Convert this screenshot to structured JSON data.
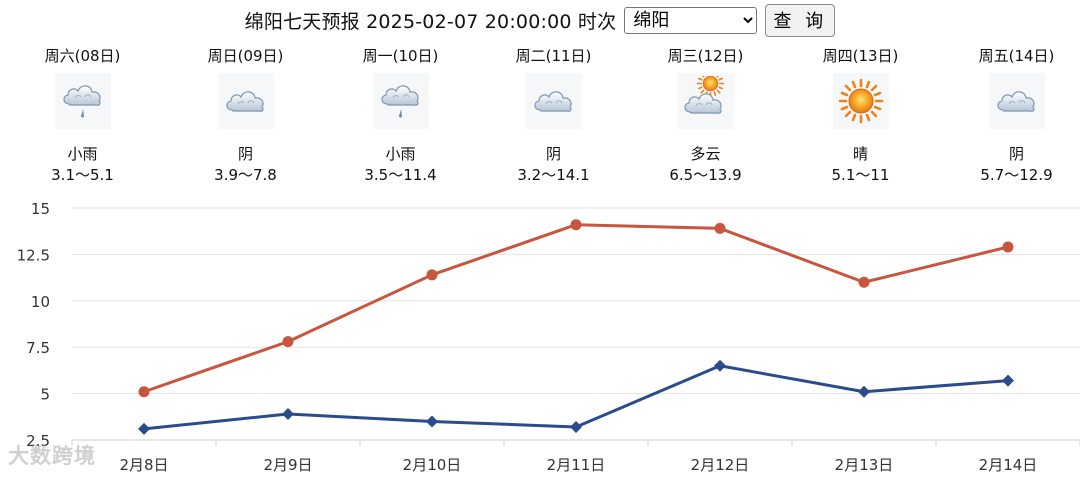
{
  "header": {
    "title": "绵阳七天预报 2025-02-07 20:00:00 时次",
    "selected_city": "绵阳",
    "query_label": "查 询"
  },
  "forecast": [
    {
      "day": "周六(08日)",
      "icon": "light-rain-icon",
      "condition": "小雨",
      "range": "3.1～5.1"
    },
    {
      "day": "周日(09日)",
      "icon": "overcast-icon",
      "condition": "阴",
      "range": "3.9～7.8"
    },
    {
      "day": "周一(10日)",
      "icon": "light-rain-icon",
      "condition": "小雨",
      "range": "3.5～11.4"
    },
    {
      "day": "周二(11日)",
      "icon": "overcast-icon",
      "condition": "阴",
      "range": "3.2～14.1"
    },
    {
      "day": "周三(12日)",
      "icon": "partly-cloudy-icon",
      "condition": "多云",
      "range": "6.5～13.9"
    },
    {
      "day": "周四(13日)",
      "icon": "sun-icon",
      "condition": "晴",
      "range": "5.1～11"
    },
    {
      "day": "周五(14日)",
      "icon": "overcast-icon",
      "condition": "阴",
      "range": "5.7～12.9"
    }
  ],
  "chart_data": {
    "type": "line",
    "categories": [
      "2月8日",
      "2月9日",
      "2月10日",
      "2月11日",
      "2月12日",
      "2月13日",
      "2月14日"
    ],
    "series": [
      {
        "values": [
          5.1,
          7.8,
          11.4,
          14.1,
          13.9,
          11,
          12.9
        ],
        "color": "#c8553d",
        "marker": "circle"
      },
      {
        "values": [
          3.1,
          3.9,
          3.5,
          3.2,
          6.5,
          5.1,
          5.7
        ],
        "color": "#2b4c8c",
        "marker": "diamond"
      }
    ],
    "y_ticks": [
      "15",
      "12.5",
      "10",
      "7.5",
      "5",
      "2.5"
    ],
    "y_tick_values": [
      15,
      12.5,
      10,
      7.5,
      5,
      2.5
    ],
    "ylim": [
      2.5,
      15
    ],
    "grid": true,
    "legend": "none"
  },
  "watermark": "大数跨境"
}
